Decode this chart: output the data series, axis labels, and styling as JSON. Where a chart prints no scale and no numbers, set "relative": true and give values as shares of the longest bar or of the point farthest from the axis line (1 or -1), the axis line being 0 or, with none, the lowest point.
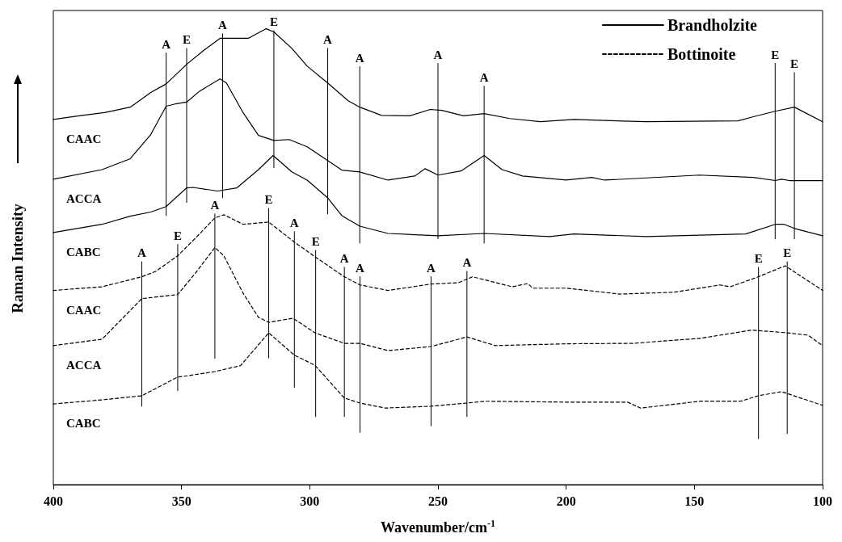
{
  "chart_data": {
    "type": "line",
    "relative": true,
    "xlabel": "Wavenumber/cm$^{-1}$",
    "ylabel": "Raman Intensity",
    "xlim": [
      400,
      100
    ],
    "xticks": [
      400,
      350,
      300,
      250,
      200,
      150,
      100
    ],
    "grid": false,
    "legend": "top right",
    "annotations": [
      "CAAC",
      "ACCA",
      "CABC",
      "CAAC",
      "ACCA",
      "CABC",
      {
        "text": "A",
        "x": 356,
        "y": 0.947
      },
      {
        "text": "E",
        "x": 348,
        "y": 0.957
      },
      {
        "text": "A",
        "x": 334,
        "y": 0.989
      },
      {
        "text": "E",
        "x": 314,
        "y": 0.996
      },
      {
        "text": "A",
        "x": 293,
        "y": 0.957
      },
      {
        "text": "A",
        "x": 280.5,
        "y": 0.917
      },
      {
        "text": "A",
        "x": 250,
        "y": 0.924
      },
      {
        "text": "A",
        "x": 232,
        "y": 0.874
      },
      {
        "text": "E",
        "x": 118.5,
        "y": 0.924
      },
      {
        "text": "E",
        "x": 111,
        "y": 0.904
      },
      {
        "text": "A",
        "x": 365.5,
        "y": 0.489
      },
      {
        "text": "E",
        "x": 351.5,
        "y": 0.527
      },
      {
        "text": "A",
        "x": 337,
        "y": 0.594
      },
      {
        "text": "E",
        "x": 316,
        "y": 0.606
      },
      {
        "text": "A",
        "x": 306,
        "y": 0.555
      },
      {
        "text": "E",
        "x": 297.7,
        "y": 0.514
      },
      {
        "text": "A",
        "x": 286.5,
        "y": 0.477
      },
      {
        "text": "A",
        "x": 280.4,
        "y": 0.456
      },
      {
        "text": "A",
        "x": 252.7,
        "y": 0.456
      },
      {
        "text": "A",
        "x": 238.7,
        "y": 0.468
      },
      {
        "text": "E",
        "x": 125,
        "y": 0.477
      },
      {
        "text": "E",
        "x": 113.8,
        "y": 0.489
      }
    ],
    "series": [
      {
        "name": "Brandholzite",
        "color": "#000000",
        "line_style": "solid",
        "x": [
          400,
          390,
          380,
          370,
          362,
          356,
          348,
          341,
          335,
          324,
          317,
          314,
          307,
          301,
          293,
          285,
          280.5,
          272,
          261,
          253,
          248.5,
          240,
          232,
          222,
          210,
          197,
          169,
          133,
          127,
          118.5,
          111,
          100
        ],
        "values": [
          0.801,
          0.809,
          0.816,
          0.828,
          0.86,
          0.879,
          0.922,
          0.954,
          0.979,
          0.979,
          1.0,
          0.993,
          0.957,
          0.918,
          0.881,
          0.842,
          0.828,
          0.81,
          0.809,
          0.823,
          0.821,
          0.809,
          0.814,
          0.803,
          0.796,
          0.801,
          0.796,
          0.798,
          0.807,
          0.819,
          0.828,
          0.796
        ]
      },
      {
        "color": "#000000",
        "line_style": "solid",
        "x": [
          400,
          381,
          370,
          362,
          356,
          352.5,
          348,
          343,
          335,
          332.5,
          326,
          320,
          314,
          308,
          301,
          293,
          287.5,
          280.5,
          269.5,
          259,
          255,
          250,
          241,
          232,
          225,
          217,
          200,
          190,
          185,
          148,
          127,
          118.5,
          116,
          113,
          100
        ],
        "values": [
          0.67,
          0.691,
          0.715,
          0.768,
          0.83,
          0.835,
          0.839,
          0.863,
          0.89,
          0.881,
          0.816,
          0.766,
          0.755,
          0.757,
          0.741,
          0.711,
          0.69,
          0.686,
          0.668,
          0.677,
          0.693,
          0.679,
          0.688,
          0.722,
          0.691,
          0.677,
          0.668,
          0.674,
          0.668,
          0.679,
          0.674,
          0.667,
          0.67,
          0.667,
          0.667
        ]
      },
      {
        "color": "#000000",
        "line_style": "solid",
        "x": [
          400,
          381,
          370,
          362,
          356,
          348,
          345.5,
          336,
          328.4,
          320,
          314.3,
          307,
          301,
          293,
          287.5,
          280.5,
          269.5,
          250,
          232,
          206.5,
          197,
          168.7,
          130,
          118.5,
          115,
          111,
          100
        ],
        "values": [
          0.553,
          0.571,
          0.589,
          0.598,
          0.61,
          0.651,
          0.652,
          0.644,
          0.651,
          0.691,
          0.722,
          0.686,
          0.668,
          0.629,
          0.59,
          0.567,
          0.551,
          0.546,
          0.551,
          0.544,
          0.55,
          0.544,
          0.55,
          0.571,
          0.571,
          0.562,
          0.546
        ]
      },
      {
        "name": "Bottinoite",
        "color": "#000000",
        "line_style": "dashed",
        "x": [
          400,
          381,
          365.5,
          360,
          351.5,
          344,
          337,
          333.5,
          326,
          316,
          306,
          298,
          286.5,
          280.4,
          269.5,
          252.7,
          242,
          236.5,
          221,
          215,
          213,
          200,
          179,
          158,
          140,
          136,
          125,
          114.6,
          100
        ],
        "values": [
          0.426,
          0.434,
          0.456,
          0.468,
          0.502,
          0.544,
          0.585,
          0.592,
          0.571,
          0.576,
          0.532,
          0.5,
          0.456,
          0.438,
          0.426,
          0.44,
          0.443,
          0.456,
          0.434,
          0.441,
          0.431,
          0.431,
          0.418,
          0.422,
          0.438,
          0.434,
          0.456,
          0.48,
          0.426
        ]
      },
      {
        "color": "#000000",
        "line_style": "dashed",
        "x": [
          400,
          381,
          365.5,
          351.5,
          345,
          337,
          333.5,
          326,
          320,
          316,
          306.5,
          298,
          286.5,
          280.4,
          269.5,
          252.7,
          238.7,
          227.6,
          200,
          174,
          147.6,
          127.7,
          113.8,
          105.7,
          100
        ],
        "values": [
          0.305,
          0.319,
          0.408,
          0.417,
          0.461,
          0.52,
          0.502,
          0.42,
          0.367,
          0.356,
          0.365,
          0.333,
          0.31,
          0.31,
          0.294,
          0.303,
          0.324,
          0.305,
          0.309,
          0.31,
          0.321,
          0.339,
          0.333,
          0.328,
          0.305
        ]
      },
      {
        "color": "#000000",
        "line_style": "dashed",
        "x": [
          400,
          381,
          365.5,
          351.5,
          347.4,
          337,
          327,
          316,
          306,
          298,
          286.5,
          280.4,
          270.6,
          252.7,
          238.7,
          231.7,
          200,
          176,
          171,
          147.6,
          132,
          125,
          116,
          100
        ],
        "values": [
          0.177,
          0.186,
          0.195,
          0.236,
          0.239,
          0.248,
          0.261,
          0.333,
          0.284,
          0.262,
          0.19,
          0.179,
          0.168,
          0.172,
          0.179,
          0.183,
          0.181,
          0.181,
          0.168,
          0.183,
          0.183,
          0.195,
          0.204,
          0.174
        ]
      },
      {
        "color": "#000000",
        "x": [
          356,
          356
        ],
        "values": [
          0.59,
          0.947
        ]
      },
      {
        "color": "#000000",
        "x": [
          348,
          348
        ],
        "values": [
          0.619,
          0.957
        ]
      },
      {
        "color": "#000000",
        "x": [
          334,
          334
        ],
        "values": [
          0.629,
          0.989
        ]
      },
      {
        "color": "#000000",
        "x": [
          314,
          314
        ],
        "values": [
          0.695,
          0.996
        ]
      },
      {
        "color": "#000000",
        "x": [
          293,
          293
        ],
        "values": [
          0.594,
          0.957
        ]
      },
      {
        "color": "#000000",
        "x": [
          280.5,
          280.5
        ],
        "values": [
          0.53,
          0.917
        ]
      },
      {
        "color": "#000000",
        "x": [
          250,
          250
        ],
        "values": [
          0.539,
          0.924
        ]
      },
      {
        "color": "#000000",
        "x": [
          232,
          232
        ],
        "values": [
          0.53,
          0.874
        ]
      },
      {
        "color": "#000000",
        "x": [
          118.5,
          118.5
        ],
        "values": [
          0.539,
          0.924
        ]
      },
      {
        "color": "#000000",
        "x": [
          111,
          111
        ],
        "values": [
          0.539,
          0.904
        ]
      },
      {
        "color": "#000000",
        "x": [
          365.5,
          365.5
        ],
        "values": [
          0.172,
          0.489
        ]
      },
      {
        "color": "#000000",
        "x": [
          351.5,
          351.5
        ],
        "values": [
          0.206,
          0.527
        ]
      },
      {
        "color": "#000000",
        "x": [
          337,
          337
        ],
        "values": [
          0.277,
          0.594
        ]
      },
      {
        "color": "#000000",
        "x": [
          316,
          316
        ],
        "values": [
          0.278,
          0.606
        ]
      },
      {
        "color": "#000000",
        "x": [
          306,
          306
        ],
        "values": [
          0.213,
          0.555
        ]
      },
      {
        "color": "#000000",
        "x": [
          297.7,
          297.7
        ],
        "values": [
          0.149,
          0.514
        ]
      },
      {
        "color": "#000000",
        "x": [
          286.5,
          286.5
        ],
        "values": [
          0.149,
          0.477
        ]
      },
      {
        "color": "#000000",
        "x": [
          280.4,
          280.4
        ],
        "values": [
          0.115,
          0.456
        ]
      },
      {
        "color": "#000000",
        "x": [
          252.7,
          252.7
        ],
        "values": [
          0.129,
          0.456
        ]
      },
      {
        "color": "#000000",
        "x": [
          238.7,
          238.7
        ],
        "values": [
          0.149,
          0.468
        ]
      },
      {
        "color": "#000000",
        "x": [
          125,
          125
        ],
        "values": [
          0.101,
          0.477
        ]
      },
      {
        "color": "#000000",
        "x": [
          113.8,
          113.8
        ],
        "values": [
          0.112,
          0.489
        ]
      }
    ]
  }
}
